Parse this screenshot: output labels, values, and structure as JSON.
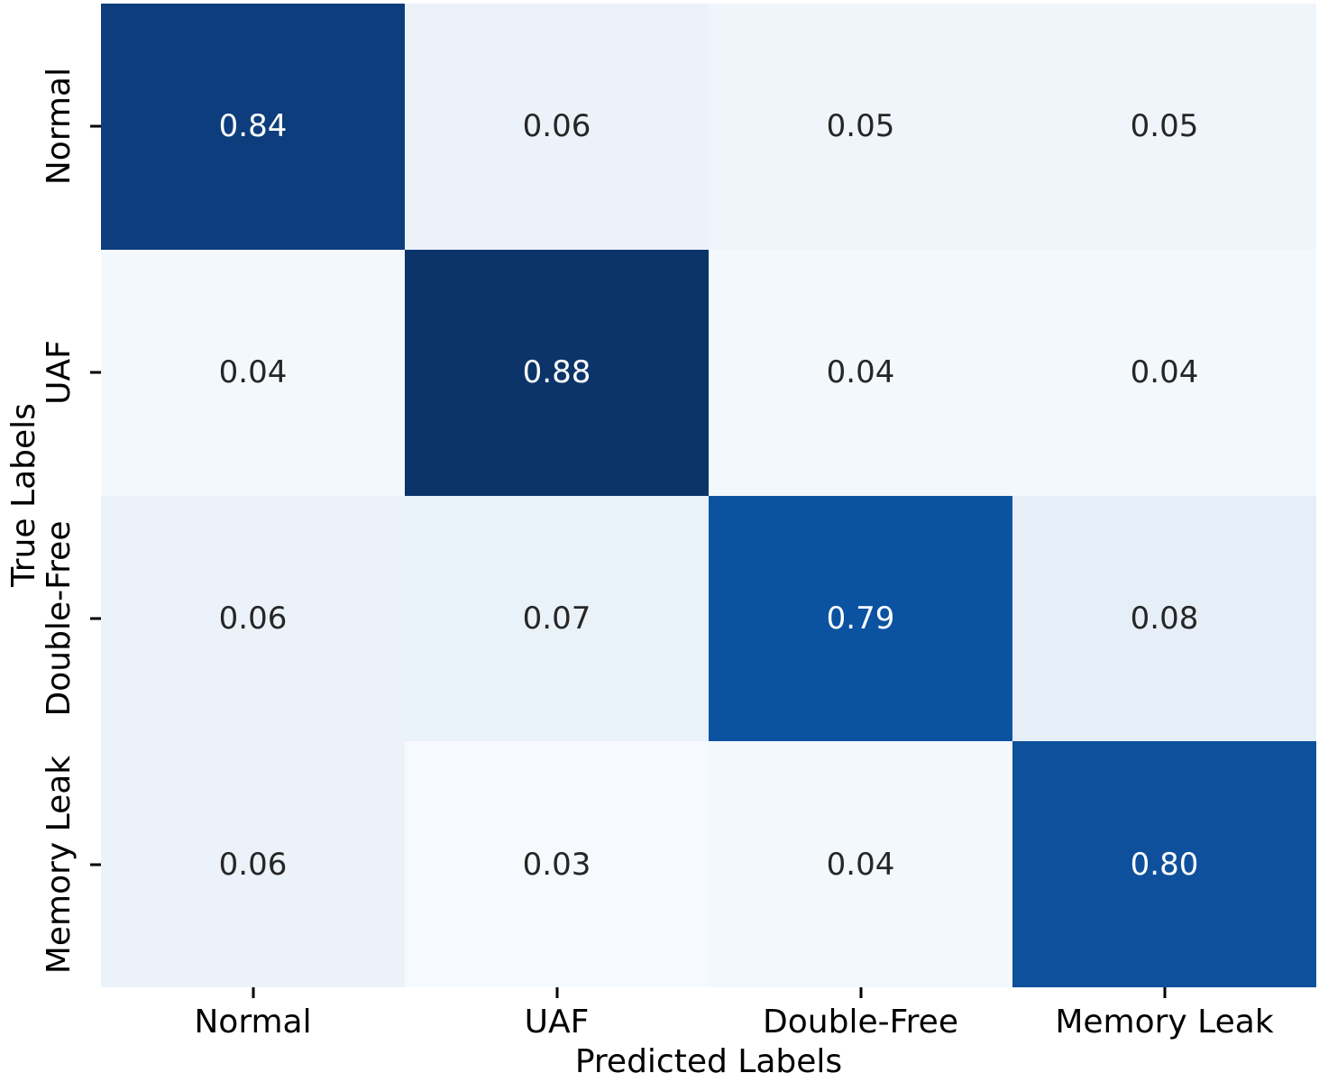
{
  "figure": {
    "background": "#ffffff"
  },
  "chart_data": {
    "type": "heatmap",
    "title": "",
    "xlabel": "Predicted Labels",
    "ylabel": "True Labels",
    "x_categories": [
      "Normal",
      "UAF",
      "Double-Free",
      "Memory Leak"
    ],
    "y_categories": [
      "Normal",
      "UAF",
      "Double-Free",
      "Memory Leak"
    ],
    "matrix": [
      [
        0.84,
        0.06,
        0.05,
        0.05
      ],
      [
        0.04,
        0.88,
        0.04,
        0.04
      ],
      [
        0.06,
        0.07,
        0.79,
        0.08
      ],
      [
        0.06,
        0.03,
        0.04,
        0.8
      ]
    ],
    "cell_labels": [
      [
        "0.84",
        "0.06",
        "0.05",
        "0.05"
      ],
      [
        "0.04",
        "0.88",
        "0.04",
        "0.04"
      ],
      [
        "0.06",
        "0.07",
        "0.79",
        "0.08"
      ],
      [
        "0.06",
        "0.03",
        "0.04",
        "0.80"
      ]
    ],
    "cell_colors": [
      [
        "#0D3D7C",
        "#EBF2FA",
        "#F0F5FC",
        "#F0F5FC"
      ],
      [
        "#F3F8FD",
        "#0D3469",
        "#F3F8FD",
        "#F3F8FD"
      ],
      [
        "#EBF2FA",
        "#E9F1F9",
        "#0B53A1",
        "#E6EFF8"
      ],
      [
        "#EBF2FA",
        "#F6FAFE",
        "#F3F8FD",
        "#0E509C"
      ]
    ],
    "cell_text_colors": [
      [
        "#FFFFFF",
        "#262626",
        "#262626",
        "#262626"
      ],
      [
        "#262626",
        "#FFFFFF",
        "#262626",
        "#262626"
      ],
      [
        "#262626",
        "#262626",
        "#FFFFFF",
        "#262626"
      ],
      [
        "#262626",
        "#262626",
        "#262626",
        "#FFFFFF"
      ]
    ],
    "colormap": "Blues",
    "value_range": [
      0.03,
      0.88
    ],
    "tick_color": "#000000",
    "text_color": "#000000",
    "legend": "none",
    "grid": "off"
  }
}
